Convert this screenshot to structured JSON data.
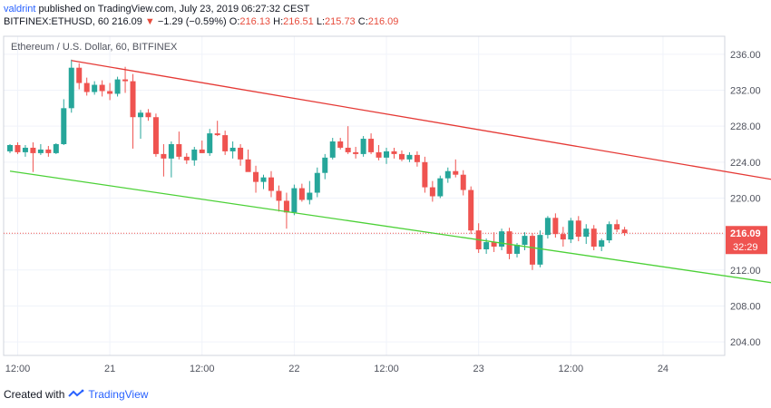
{
  "header": {
    "author": "valdrint",
    "published_text": "published on TradingView.com, July 23, 2019 06:27:32 CEST",
    "symbol_line": "BITFINEX:ETHUSD, 60",
    "last_price": "216.09",
    "change_arrow": "▼",
    "change_text": "−1.29 (−0.59%)",
    "o_label": "O:",
    "o_val": "216.13",
    "h_label": "H:",
    "h_val": "216.51",
    "l_label": "L:",
    "l_val": "215.73",
    "c_label": "C:",
    "c_val": "216.09"
  },
  "footer": {
    "created_with": "Created with",
    "brand": "TradingView"
  },
  "chart_data": {
    "type": "candlestick",
    "title": "Ethereum / U.S. Dollar, 60, BITFINEX",
    "ylim": [
      202.5,
      238
    ],
    "y_ticks": [
      "236.00",
      "232.00",
      "228.00",
      "224.00",
      "220.00",
      "216.00",
      "212.00",
      "208.00",
      "204.00"
    ],
    "y_tick_values": [
      236,
      232,
      228,
      224,
      220,
      216,
      212,
      208,
      204
    ],
    "x_ticks": [
      "12:00",
      "21",
      "12:00",
      "22",
      "12:00",
      "23",
      "12:00",
      "24"
    ],
    "x_tick_hours": [
      0,
      12,
      24,
      36,
      48,
      60,
      72,
      84
    ],
    "last_price_label": "216.09",
    "last_price": 216.09,
    "countdown_label": "32:29",
    "colors": {
      "up": "#26a69a",
      "down": "#ef5350",
      "resistance": "#e53935",
      "support": "#4cd137",
      "price_line": "#ef5350"
    },
    "candles": [
      {
        "o": 225.2,
        "h": 226.0,
        "l": 225.0,
        "c": 225.9
      },
      {
        "o": 225.9,
        "h": 226.2,
        "l": 224.9,
        "c": 225.1
      },
      {
        "o": 225.1,
        "h": 225.9,
        "l": 224.6,
        "c": 225.6
      },
      {
        "o": 225.6,
        "h": 226.2,
        "l": 222.9,
        "c": 225.0
      },
      {
        "o": 225.0,
        "h": 226.0,
        "l": 224.8,
        "c": 225.4
      },
      {
        "o": 225.4,
        "h": 225.8,
        "l": 224.6,
        "c": 225.0
      },
      {
        "o": 225.0,
        "h": 226.1,
        "l": 224.9,
        "c": 226.0
      },
      {
        "o": 226.0,
        "h": 231.0,
        "l": 225.9,
        "c": 230.0
      },
      {
        "o": 230.0,
        "h": 235.4,
        "l": 229.5,
        "c": 234.5
      },
      {
        "o": 234.5,
        "h": 235.0,
        "l": 232.1,
        "c": 232.8
      },
      {
        "o": 232.8,
        "h": 233.4,
        "l": 231.4,
        "c": 231.8
      },
      {
        "o": 231.8,
        "h": 233.0,
        "l": 231.5,
        "c": 232.6
      },
      {
        "o": 232.6,
        "h": 233.1,
        "l": 231.3,
        "c": 231.9
      },
      {
        "o": 231.9,
        "h": 232.8,
        "l": 230.9,
        "c": 231.6
      },
      {
        "o": 231.6,
        "h": 233.5,
        "l": 231.3,
        "c": 233.2
      },
      {
        "o": 233.2,
        "h": 234.6,
        "l": 231.7,
        "c": 233.0
      },
      {
        "o": 233.0,
        "h": 233.8,
        "l": 225.5,
        "c": 229.0
      },
      {
        "o": 229.0,
        "h": 229.8,
        "l": 226.6,
        "c": 229.5
      },
      {
        "o": 229.5,
        "h": 229.9,
        "l": 228.6,
        "c": 229.0
      },
      {
        "o": 229.0,
        "h": 229.4,
        "l": 224.6,
        "c": 224.9
      },
      {
        "o": 224.9,
        "h": 226.0,
        "l": 222.4,
        "c": 224.4
      },
      {
        "o": 224.4,
        "h": 226.3,
        "l": 222.3,
        "c": 226.0
      },
      {
        "o": 226.0,
        "h": 227.4,
        "l": 224.3,
        "c": 224.6
      },
      {
        "o": 224.6,
        "h": 225.0,
        "l": 223.8,
        "c": 224.2
      },
      {
        "o": 224.2,
        "h": 225.7,
        "l": 223.6,
        "c": 225.4
      },
      {
        "o": 225.4,
        "h": 226.4,
        "l": 225.0,
        "c": 225.0
      },
      {
        "o": 225.0,
        "h": 227.7,
        "l": 224.7,
        "c": 227.2
      },
      {
        "o": 227.2,
        "h": 228.6,
        "l": 226.9,
        "c": 227.0
      },
      {
        "o": 227.0,
        "h": 227.5,
        "l": 224.8,
        "c": 225.2
      },
      {
        "o": 225.2,
        "h": 226.3,
        "l": 224.4,
        "c": 225.6
      },
      {
        "o": 225.6,
        "h": 226.0,
        "l": 223.6,
        "c": 224.3
      },
      {
        "o": 224.3,
        "h": 225.4,
        "l": 223.1,
        "c": 222.9
      },
      {
        "o": 222.9,
        "h": 223.6,
        "l": 220.6,
        "c": 221.8
      },
      {
        "o": 221.8,
        "h": 222.6,
        "l": 221.0,
        "c": 222.3
      },
      {
        "o": 222.3,
        "h": 223.0,
        "l": 220.1,
        "c": 220.8
      },
      {
        "o": 220.8,
        "h": 221.4,
        "l": 218.5,
        "c": 219.7
      },
      {
        "o": 219.7,
        "h": 220.6,
        "l": 216.6,
        "c": 218.4
      },
      {
        "o": 218.4,
        "h": 221.5,
        "l": 218.1,
        "c": 221.1
      },
      {
        "o": 221.1,
        "h": 221.6,
        "l": 219.6,
        "c": 219.8
      },
      {
        "o": 219.8,
        "h": 221.9,
        "l": 219.3,
        "c": 220.6
      },
      {
        "o": 220.6,
        "h": 223.4,
        "l": 220.1,
        "c": 222.8
      },
      {
        "o": 222.8,
        "h": 224.9,
        "l": 222.1,
        "c": 224.5
      },
      {
        "o": 224.5,
        "h": 226.7,
        "l": 224.3,
        "c": 226.3
      },
      {
        "o": 226.3,
        "h": 226.7,
        "l": 225.4,
        "c": 225.6
      },
      {
        "o": 225.6,
        "h": 228.0,
        "l": 224.9,
        "c": 225.1
      },
      {
        "o": 225.1,
        "h": 225.7,
        "l": 224.4,
        "c": 224.9
      },
      {
        "o": 224.9,
        "h": 226.9,
        "l": 224.6,
        "c": 226.6
      },
      {
        "o": 226.6,
        "h": 227.2,
        "l": 224.9,
        "c": 225.1
      },
      {
        "o": 225.1,
        "h": 225.9,
        "l": 224.2,
        "c": 224.5
      },
      {
        "o": 224.5,
        "h": 225.6,
        "l": 223.8,
        "c": 225.2
      },
      {
        "o": 225.2,
        "h": 225.6,
        "l": 224.4,
        "c": 224.9
      },
      {
        "o": 224.9,
        "h": 225.3,
        "l": 224.1,
        "c": 224.3
      },
      {
        "o": 224.3,
        "h": 225.1,
        "l": 224.0,
        "c": 224.8
      },
      {
        "o": 224.8,
        "h": 225.2,
        "l": 223.5,
        "c": 224.0
      },
      {
        "o": 224.0,
        "h": 224.6,
        "l": 220.6,
        "c": 221.2
      },
      {
        "o": 221.2,
        "h": 221.9,
        "l": 219.6,
        "c": 220.2
      },
      {
        "o": 220.2,
        "h": 222.5,
        "l": 220.0,
        "c": 222.2
      },
      {
        "o": 222.2,
        "h": 223.4,
        "l": 221.7,
        "c": 223.0
      },
      {
        "o": 223.0,
        "h": 224.3,
        "l": 222.3,
        "c": 222.6
      },
      {
        "o": 222.6,
        "h": 223.1,
        "l": 220.3,
        "c": 220.9
      },
      {
        "o": 220.9,
        "h": 221.3,
        "l": 216.0,
        "c": 216.4
      },
      {
        "o": 216.4,
        "h": 217.2,
        "l": 213.9,
        "c": 214.3
      },
      {
        "o": 214.3,
        "h": 215.5,
        "l": 213.8,
        "c": 215.1
      },
      {
        "o": 215.1,
        "h": 216.2,
        "l": 214.0,
        "c": 214.6
      },
      {
        "o": 214.6,
        "h": 216.6,
        "l": 214.2,
        "c": 216.3
      },
      {
        "o": 216.3,
        "h": 216.7,
        "l": 213.2,
        "c": 213.8
      },
      {
        "o": 213.8,
        "h": 215.0,
        "l": 213.4,
        "c": 214.8
      },
      {
        "o": 214.8,
        "h": 216.2,
        "l": 214.2,
        "c": 215.8
      },
      {
        "o": 215.8,
        "h": 216.1,
        "l": 212.0,
        "c": 212.6
      },
      {
        "o": 212.6,
        "h": 216.4,
        "l": 212.3,
        "c": 215.9
      },
      {
        "o": 215.9,
        "h": 218.0,
        "l": 215.5,
        "c": 217.8
      },
      {
        "o": 217.8,
        "h": 218.3,
        "l": 215.6,
        "c": 216.0
      },
      {
        "o": 216.0,
        "h": 216.8,
        "l": 214.6,
        "c": 215.4
      },
      {
        "o": 215.4,
        "h": 217.8,
        "l": 215.0,
        "c": 217.5
      },
      {
        "o": 217.5,
        "h": 218.0,
        "l": 215.2,
        "c": 215.7
      },
      {
        "o": 215.7,
        "h": 217.1,
        "l": 214.9,
        "c": 216.6
      },
      {
        "o": 216.6,
        "h": 217.0,
        "l": 214.2,
        "c": 214.6
      },
      {
        "o": 214.6,
        "h": 215.5,
        "l": 214.1,
        "c": 215.3
      },
      {
        "o": 215.3,
        "h": 217.4,
        "l": 215.0,
        "c": 217.1
      },
      {
        "o": 217.1,
        "h": 217.6,
        "l": 216.2,
        "c": 216.5
      },
      {
        "o": 216.5,
        "h": 216.8,
        "l": 215.8,
        "c": 216.1
      }
    ],
    "trendlines": [
      {
        "role": "resistance",
        "from": {
          "i": 8,
          "y": 235.3
        },
        "to": {
          "i": 130,
          "y": 217.6
        },
        "arrow": true
      },
      {
        "role": "support",
        "from": {
          "i": 0,
          "y": 223.0
        },
        "to": {
          "i": 123,
          "y": 207.6
        },
        "arrow": true
      }
    ]
  }
}
